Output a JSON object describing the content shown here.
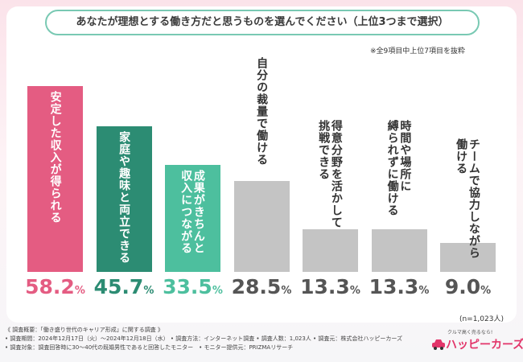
{
  "header": {
    "title": "あなたが理想とする働き方だと思うものを選んでください（上位3つまで選択）",
    "note": "※全9項目中上位7項目を抜粋"
  },
  "chart_data": {
    "type": "bar",
    "title": "あなたが理想とする働き方だと思うものを選んでください（上位3つまで選択）",
    "categories": [
      "安定した収入が得られる",
      "家庭や趣味と両立できる",
      "成果がきちんと収入につながる",
      "自分の裁量で働ける",
      "得意分野を活かして挑戦できる",
      "時間や場所に縛られずに働ける",
      "チームで協力しながら働ける"
    ],
    "label_lines": [
      [
        "安定した収入が得られる"
      ],
      [
        "家庭や趣味と両立できる"
      ],
      [
        "成果がきちんと",
        "収入につながる"
      ],
      [
        "自分の裁量で働ける"
      ],
      [
        "得意分野を活かして",
        "挑戦できる"
      ],
      [
        "時間や場所に",
        "縛られずに働ける"
      ],
      [
        "チームで協力しながら",
        "働ける"
      ]
    ],
    "values": [
      58.2,
      45.7,
      33.5,
      28.5,
      13.3,
      13.3,
      9.0
    ],
    "value_labels": [
      {
        "num": "58.2",
        "unit": "%"
      },
      {
        "num": "45.7",
        "unit": "%"
      },
      {
        "num": "33.5",
        "unit": "%"
      },
      {
        "num": "28.5",
        "unit": "%"
      },
      {
        "num": "13.3",
        "unit": "%"
      },
      {
        "num": "13.3",
        "unit": "%"
      },
      {
        "num": "9.0",
        "unit": "%"
      }
    ],
    "ylim": [
      0,
      62
    ],
    "colors": {
      "bars": [
        "#e45c82",
        "#2c8c73",
        "#4dbf9e",
        "#c4c4c4",
        "#c4c4c4",
        "#c4c4c4",
        "#c4c4c4"
      ],
      "labels": [
        "#ffffff",
        "#ffffff",
        "#ffffff",
        "#333333",
        "#333333",
        "#333333",
        "#333333"
      ],
      "values": [
        "#e45c82",
        "#2c8c73",
        "#4dbf9e",
        "#555555",
        "#555555",
        "#555555",
        "#555555"
      ]
    }
  },
  "sample": "(n=1,023人)",
  "footer": {
    "lines": [
      "《 調査概要：「働き盛り世代のキャリア形成」に関する調査 》",
      "• 調査期間：2024年12月17日（火）〜2024年12月18日（水） • 調査方法：インターネット調査 • 調査人数：1,023人 • 調査元：株式会社ハッピーカーズ",
      "• 調査対象：調査回答時に30〜40代の既婚男性であると回答したモニター　• モニター提供元：PRIZMAリサーチ"
    ]
  },
  "logo": {
    "tagline": "クルマ高く売るなら!",
    "name": "ハッピーカーズ",
    "icon": "pink-car-icon"
  }
}
